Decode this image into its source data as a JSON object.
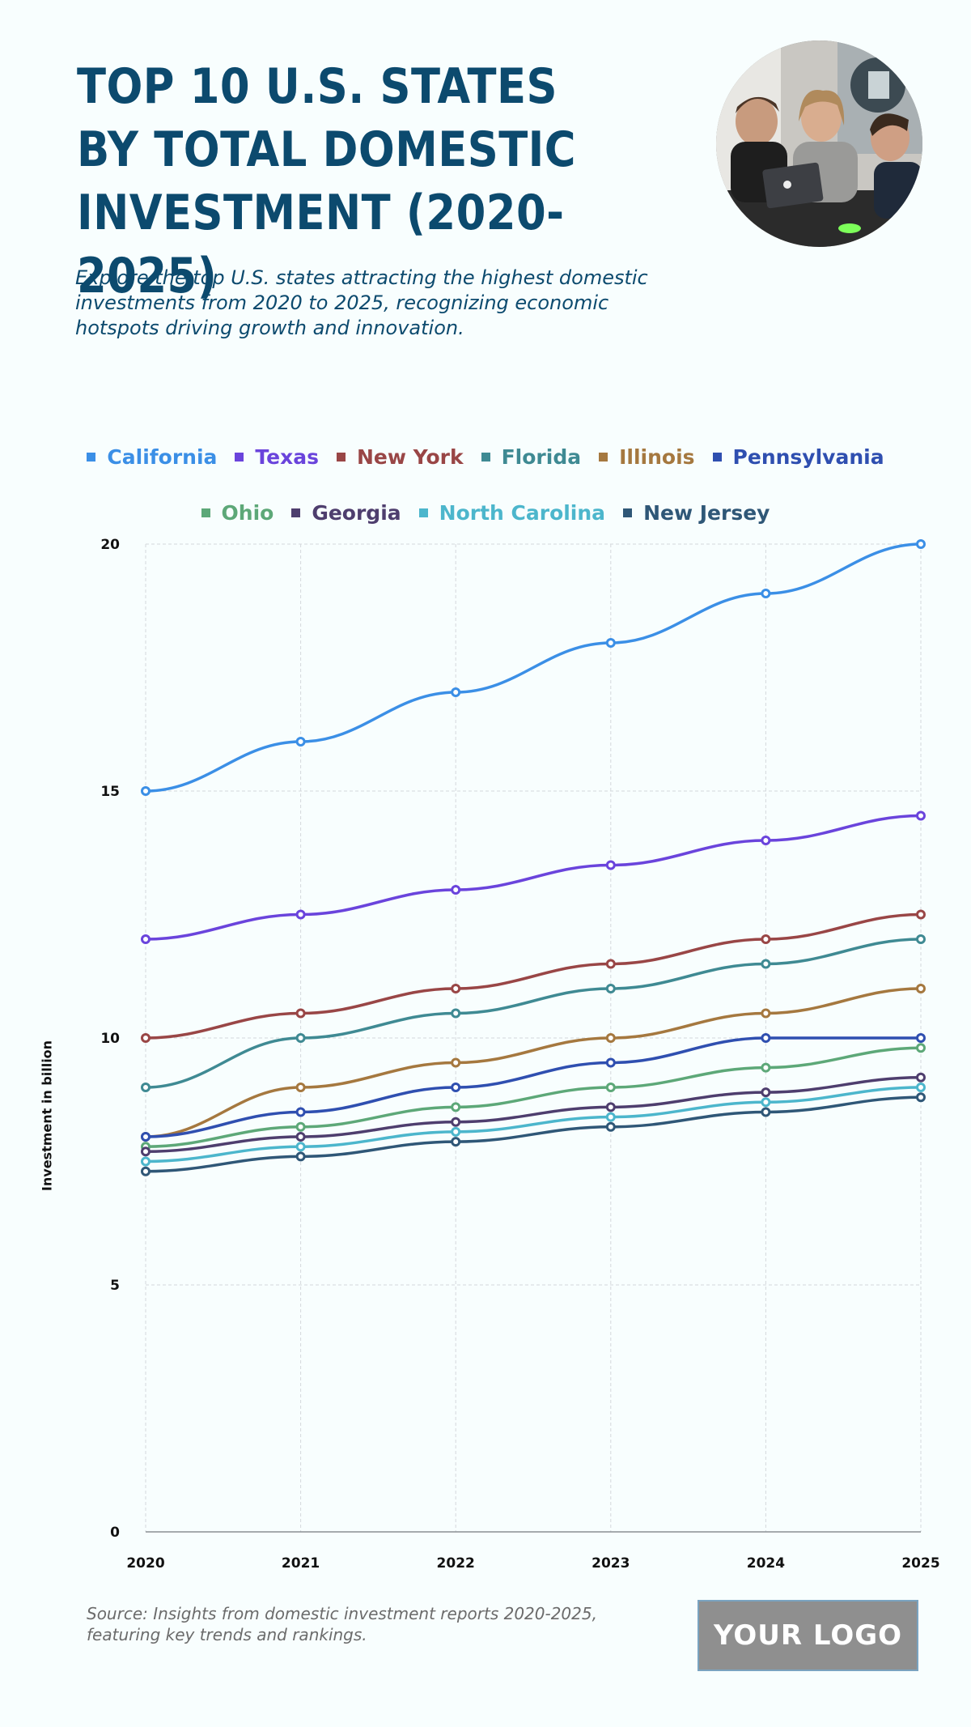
{
  "header": {
    "title": "TOP 10 U.S. STATES BY TOTAL DOMESTIC INVESTMENT (2020-2025)",
    "subtitle": "Explore the top U.S. states attracting the highest domestic investments from 2020 to 2025, recognizing economic hotspots driving growth and innovation."
  },
  "footer": {
    "source": "Source: Insights from domestic investment reports 2020-2025, featuring key trends and rankings.",
    "logo_text": "YOUR LOGO"
  },
  "chart_data": {
    "type": "line",
    "title": "",
    "xlabel": "",
    "ylabel": "Investment in billion",
    "x": [
      "2020",
      "2021",
      "2022",
      "2023",
      "2024",
      "2025"
    ],
    "ylim": [
      0,
      20
    ],
    "yticks": [
      "0",
      "5",
      "10",
      "15",
      "20"
    ],
    "grid": true,
    "legend_position": "top",
    "series": [
      {
        "name": "California",
        "color": "#3b8fe6",
        "values": [
          15,
          16,
          17,
          18,
          19,
          20
        ]
      },
      {
        "name": "Texas",
        "color": "#6a44dc",
        "values": [
          12,
          12.5,
          13,
          13.5,
          14,
          14.5
        ]
      },
      {
        "name": "New York",
        "color": "#994646",
        "values": [
          10,
          10.5,
          11,
          11.5,
          12,
          12.5
        ]
      },
      {
        "name": "Florida",
        "color": "#3f8a93",
        "values": [
          9,
          10,
          10.5,
          11,
          11.5,
          12
        ]
      },
      {
        "name": "Illinois",
        "color": "#a5783f",
        "values": [
          8,
          9,
          9.5,
          10,
          10.5,
          11
        ]
      },
      {
        "name": "Pennsylvania",
        "color": "#2f4fb0",
        "values": [
          8,
          8.5,
          9,
          9.5,
          10,
          10
        ]
      },
      {
        "name": "Ohio",
        "color": "#5da878",
        "values": [
          7.8,
          8.2,
          8.6,
          9,
          9.4,
          9.8
        ]
      },
      {
        "name": "Georgia",
        "color": "#4e3e6e",
        "values": [
          7.7,
          8,
          8.3,
          8.6,
          8.9,
          9.2
        ]
      },
      {
        "name": "North Carolina",
        "color": "#4cb6cc",
        "values": [
          7.5,
          7.8,
          8.1,
          8.4,
          8.7,
          9
        ]
      },
      {
        "name": "New Jersey",
        "color": "#2f5777",
        "values": [
          7.3,
          7.6,
          7.9,
          8.2,
          8.5,
          8.8
        ]
      }
    ]
  }
}
